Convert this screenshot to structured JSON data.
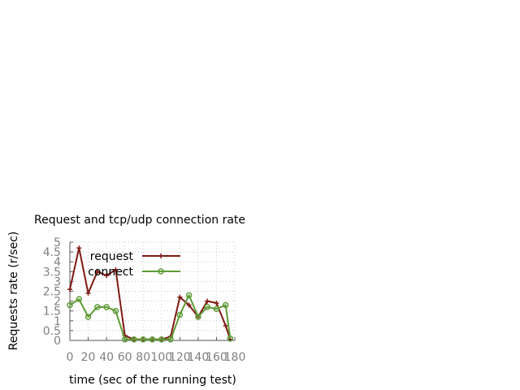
{
  "chart_data": {
    "type": "line",
    "title": "Request and tcp/udp connection rate",
    "xlabel": "time (sec of the running test)",
    "ylabel": "Requests rate (r/sec)",
    "xlim": [
      0,
      180
    ],
    "ylim": [
      0,
      5
    ],
    "x_ticks": [
      "0",
      "20",
      "40",
      "60",
      "80",
      "100",
      "120",
      "140",
      "160",
      "180"
    ],
    "y_ticks": [
      "0",
      "0.5",
      "1",
      "1.5",
      "2",
      "2.5",
      "3",
      "3.5",
      "4",
      "4.5",
      "5"
    ],
    "grid": true,
    "legend_position": "top-left",
    "x": [
      0,
      10,
      20,
      30,
      40,
      50,
      60,
      70,
      80,
      90,
      100,
      110,
      120,
      130,
      140,
      150,
      160,
      170,
      175
    ],
    "series": [
      {
        "name": "request",
        "color": "#7f1a13",
        "marker": "plus",
        "values": [
          2.6,
          4.7,
          2.4,
          3.5,
          3.3,
          3.6,
          0.25,
          0.05,
          0.05,
          0.05,
          0.05,
          0.2,
          2.2,
          1.8,
          1.2,
          2.0,
          1.9,
          0.75,
          0.05
        ]
      },
      {
        "name": "connect",
        "color": "#5e9b37",
        "marker": "circle",
        "values": [
          1.8,
          2.1,
          1.2,
          1.7,
          1.7,
          1.5,
          0.05,
          0.05,
          0.05,
          0.05,
          0.05,
          0.05,
          1.3,
          2.3,
          1.2,
          1.7,
          1.6,
          1.8,
          0.1
        ]
      }
    ]
  }
}
